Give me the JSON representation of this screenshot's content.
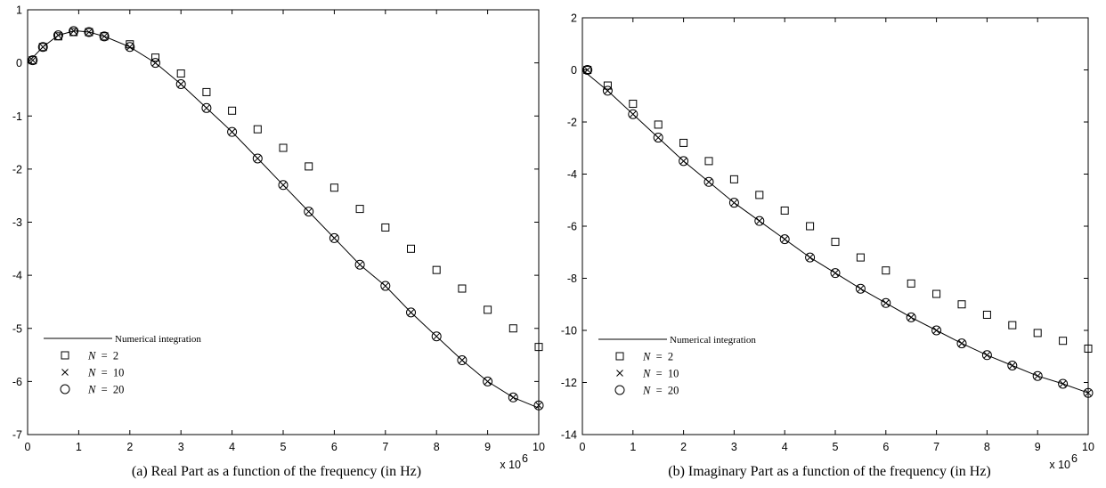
{
  "chart_data": [
    {
      "type": "line",
      "caption": "(a) Real Part as a function of the frequency (in Hz)",
      "x_multiplier": "x 10",
      "x_multiplier_exp": "6",
      "xlim": [
        0,
        10
      ],
      "ylim": [
        -7,
        1
      ],
      "xticks": [
        0,
        1,
        2,
        3,
        4,
        5,
        6,
        7,
        8,
        9,
        10
      ],
      "yticks": [
        -7,
        -6,
        -5,
        -4,
        -3,
        -2,
        -1,
        0,
        1
      ],
      "grid": false,
      "legend_position": "bottom-left",
      "x": [
        0.1,
        2,
        3,
        4,
        5,
        6,
        7,
        8,
        9,
        10
      ],
      "series": [
        {
          "name": "Numerical integration",
          "style": "solid line",
          "x": [
            0,
            0.3,
            0.6,
            0.9,
            1.0,
            1.2,
            1.5,
            2,
            2.5,
            3,
            3.5,
            4,
            4.5,
            5,
            5.5,
            6,
            6.5,
            7,
            7.5,
            8,
            8.5,
            9,
            9.5,
            10
          ],
          "values": [
            0.0,
            0.3,
            0.52,
            0.6,
            0.6,
            0.58,
            0.5,
            0.3,
            0.0,
            -0.4,
            -0.85,
            -1.3,
            -1.8,
            -2.3,
            -2.8,
            -3.3,
            -3.8,
            -4.2,
            -4.7,
            -5.15,
            -5.6,
            -6.0,
            -6.3,
            -6.5
          ]
        },
        {
          "name": "N = 2",
          "marker": "square",
          "x": [
            0.1,
            0.3,
            0.6,
            0.9,
            1.2,
            1.5,
            2,
            2.5,
            3,
            3.5,
            4,
            4.5,
            5,
            5.5,
            6,
            6.5,
            7,
            7.5,
            8,
            8.5,
            9,
            9.5,
            10
          ],
          "values": [
            0.05,
            0.3,
            0.5,
            0.58,
            0.58,
            0.5,
            0.35,
            0.1,
            -0.2,
            -0.55,
            -0.9,
            -1.25,
            -1.6,
            -1.95,
            -2.35,
            -2.75,
            -3.1,
            -3.5,
            -3.9,
            -4.25,
            -4.65,
            -5.0,
            -5.35
          ]
        },
        {
          "name": "N = 10",
          "marker": "x",
          "x": [
            0.1,
            0.3,
            0.6,
            0.9,
            1.2,
            1.5,
            2,
            2.5,
            3,
            3.5,
            4,
            4.5,
            5,
            5.5,
            6,
            6.5,
            7,
            7.5,
            8,
            8.5,
            9,
            9.5,
            10
          ],
          "values": [
            0.05,
            0.3,
            0.52,
            0.6,
            0.58,
            0.5,
            0.3,
            0.0,
            -0.4,
            -0.85,
            -1.3,
            -1.8,
            -2.3,
            -2.8,
            -3.3,
            -3.8,
            -4.2,
            -4.7,
            -5.15,
            -5.6,
            -6.0,
            -6.3,
            -6.45
          ]
        },
        {
          "name": "N = 20",
          "marker": "circle",
          "x": [
            0.1,
            0.3,
            0.6,
            0.9,
            1.2,
            1.5,
            2,
            2.5,
            3,
            3.5,
            4,
            4.5,
            5,
            5.5,
            6,
            6.5,
            7,
            7.5,
            8,
            8.5,
            9,
            9.5,
            10
          ],
          "values": [
            0.05,
            0.3,
            0.52,
            0.6,
            0.58,
            0.5,
            0.3,
            0.0,
            -0.4,
            -0.85,
            -1.3,
            -1.8,
            -2.3,
            -2.8,
            -3.3,
            -3.8,
            -4.2,
            -4.7,
            -5.15,
            -5.6,
            -6.0,
            -6.3,
            -6.45
          ]
        }
      ]
    },
    {
      "type": "line",
      "caption": "(b) Imaginary Part as a function of the frequency (in Hz)",
      "x_multiplier": "x 10",
      "x_multiplier_exp": "6",
      "xlim": [
        0,
        10
      ],
      "ylim": [
        -14,
        2
      ],
      "xticks": [
        0,
        1,
        2,
        3,
        4,
        5,
        6,
        7,
        8,
        9,
        10
      ],
      "yticks": [
        -14,
        -12,
        -10,
        -8,
        -6,
        -4,
        -2,
        0,
        2
      ],
      "grid": false,
      "legend_position": "bottom-left",
      "series": [
        {
          "name": "Numerical integration",
          "style": "solid line",
          "x": [
            0,
            0.5,
            1,
            1.5,
            2,
            2.5,
            3,
            3.5,
            4,
            4.5,
            5,
            5.5,
            6,
            6.5,
            7,
            7.5,
            8,
            8.5,
            9,
            9.5,
            10
          ],
          "values": [
            0.0,
            -0.8,
            -1.7,
            -2.6,
            -3.5,
            -4.3,
            -5.1,
            -5.8,
            -6.5,
            -7.2,
            -7.8,
            -8.4,
            -8.95,
            -9.5,
            -10.0,
            -10.5,
            -10.95,
            -11.35,
            -11.75,
            -12.05,
            -12.4
          ]
        },
        {
          "name": "N = 2",
          "marker": "square",
          "x": [
            0.1,
            0.5,
            1,
            1.5,
            2,
            2.5,
            3,
            3.5,
            4,
            4.5,
            5,
            5.5,
            6,
            6.5,
            7,
            7.5,
            8,
            8.5,
            9,
            9.5,
            10
          ],
          "values": [
            0.0,
            -0.6,
            -1.3,
            -2.1,
            -2.8,
            -3.5,
            -4.2,
            -4.8,
            -5.4,
            -6.0,
            -6.6,
            -7.2,
            -7.7,
            -8.2,
            -8.6,
            -9.0,
            -9.4,
            -9.8,
            -10.1,
            -10.4,
            -10.7
          ]
        },
        {
          "name": "N = 10",
          "marker": "x",
          "x": [
            0.1,
            0.5,
            1,
            1.5,
            2,
            2.5,
            3,
            3.5,
            4,
            4.5,
            5,
            5.5,
            6,
            6.5,
            7,
            7.5,
            8,
            8.5,
            9,
            9.5,
            10
          ],
          "values": [
            0.0,
            -0.8,
            -1.7,
            -2.6,
            -3.5,
            -4.3,
            -5.1,
            -5.8,
            -6.5,
            -7.2,
            -7.8,
            -8.4,
            -8.95,
            -9.5,
            -10.0,
            -10.5,
            -10.95,
            -11.35,
            -11.75,
            -12.05,
            -12.4
          ]
        },
        {
          "name": "N = 20",
          "marker": "circle",
          "x": [
            0.1,
            0.5,
            1,
            1.5,
            2,
            2.5,
            3,
            3.5,
            4,
            4.5,
            5,
            5.5,
            6,
            6.5,
            7,
            7.5,
            8,
            8.5,
            9,
            9.5,
            10
          ],
          "values": [
            0.0,
            -0.8,
            -1.7,
            -2.6,
            -3.5,
            -4.3,
            -5.1,
            -5.8,
            -6.5,
            -7.2,
            -7.8,
            -8.4,
            -8.95,
            -9.5,
            -10.0,
            -10.5,
            -10.95,
            -11.35,
            -11.75,
            -12.05,
            -12.4
          ]
        }
      ]
    }
  ],
  "legend_labels": {
    "line": "Numerical integration",
    "n2_var": "N",
    "n2_rest": " = 2",
    "n10_var": "N",
    "n10_rest": " = 10",
    "n20_var": "N",
    "n20_rest": " = 20"
  }
}
